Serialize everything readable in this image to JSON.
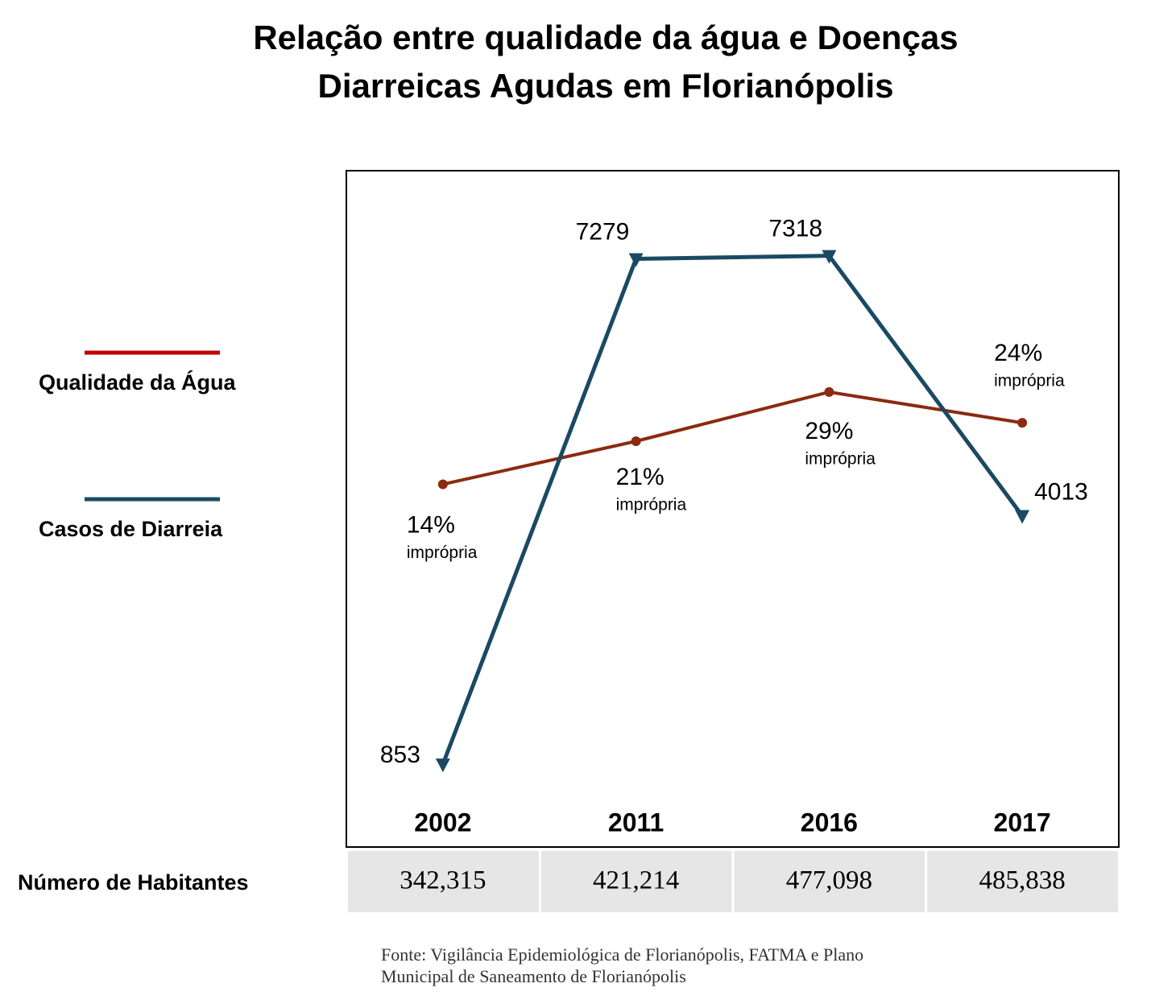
{
  "chart_data": {
    "type": "line",
    "title": [
      "Relação entre qualidade da água e Doenças",
      "Diarreicas Agudas em Florianópolis"
    ],
    "categories": [
      "2002",
      "2011",
      "2016",
      "2017"
    ],
    "series": [
      {
        "name": "Qualidade da Água",
        "color": "#8b2a10",
        "legend_color": "#c00000",
        "marker": "circle",
        "axis": "y2",
        "values": [
          14,
          21,
          29,
          24
        ],
        "value_labels": [
          "14%",
          "21%",
          "29%",
          "24%"
        ],
        "value_note": "imprópria"
      },
      {
        "name": "Casos de Diarreia",
        "color": "#1a4a63",
        "legend_color": "#1a4a63",
        "marker": "triangle",
        "values": [
          853,
          7279,
          7318,
          4013
        ]
      }
    ],
    "ylim": [
      -200,
      8400
    ],
    "y2lim": [
      -45,
      65
    ],
    "grid": false,
    "legend": "left",
    "population": {
      "label": "Número de Habitantes",
      "values": [
        "342,315",
        "421,214",
        "477,098",
        "485,838"
      ]
    },
    "source": [
      "Fonte: Vigilância Epidemiológica de Florianópolis, FATMA e Plano",
      "Municipal de Saneamento de Florianópolis"
    ]
  }
}
